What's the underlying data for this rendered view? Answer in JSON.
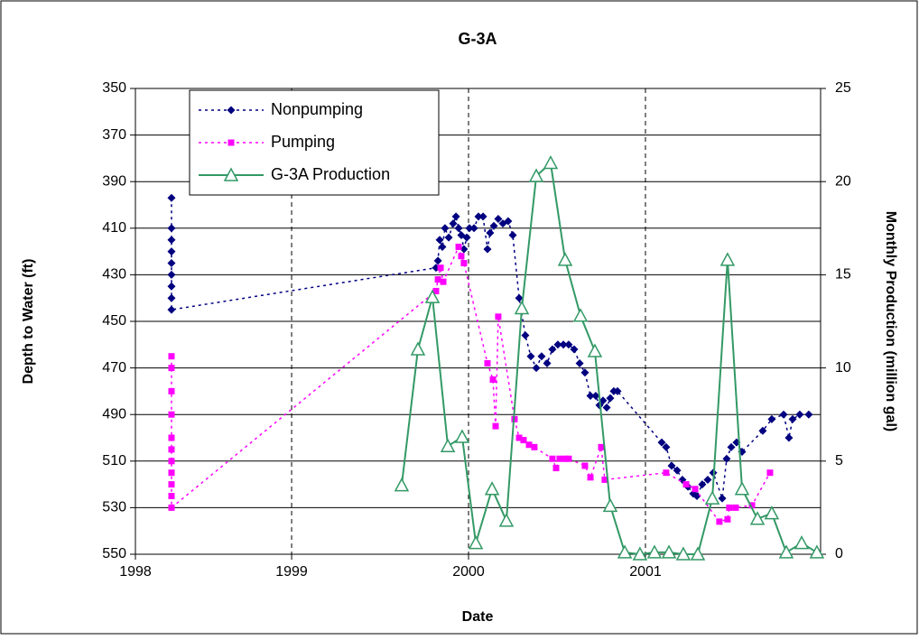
{
  "chart_data": {
    "type": "line",
    "title": "G-3A",
    "x_label": "Date",
    "y_label": "Depth to Water (ft)",
    "y2_label": "Monthly Production (million gal)",
    "xlim": [
      1998.117,
      2001.99
    ],
    "xticks": [
      {
        "value": 1998.117,
        "label": "1998"
      },
      1999,
      2000,
      2001
    ],
    "ylim": [
      550,
      350
    ],
    "yticks": [
      350,
      370,
      390,
      410,
      430,
      450,
      470,
      490,
      510,
      530,
      550
    ],
    "y2lim": [
      0,
      25
    ],
    "y2ticks": [
      0,
      5,
      10,
      15,
      20,
      25
    ],
    "grid": true,
    "legend": "top-left",
    "series": [
      {
        "name": "Nonpumping",
        "color": "#000080",
        "marker": "diamond",
        "line_style": "dotted",
        "x": [
          1998.321,
          1998.321,
          1998.321,
          1998.321,
          1998.321,
          1998.321,
          1998.321,
          1998.321,
          1998.321,
          1999.816,
          1999.827,
          1999.837,
          1999.852,
          1999.867,
          1999.888,
          1999.913,
          1999.929,
          1999.944,
          1999.959,
          1999.974,
          1999.99,
          2000.005,
          2000.031,
          2000.056,
          2000.082,
          2000.107,
          2000.122,
          2000.143,
          2000.168,
          2000.194,
          2000.224,
          2000.25,
          2000.286,
          2000.321,
          2000.352,
          2000.383,
          2000.413,
          2000.444,
          2000.474,
          2000.505,
          2000.536,
          2000.566,
          2000.597,
          2000.628,
          2000.658,
          2000.689,
          2000.719,
          2000.74,
          2000.76,
          2000.781,
          2000.801,
          2000.821,
          2000.842,
          2001.092,
          2001.117,
          2001.148,
          2001.179,
          2001.209,
          2001.24,
          2001.27,
          2001.291,
          2001.321,
          2001.352,
          2001.383,
          2001.434,
          2001.459,
          2001.485,
          2001.515,
          2001.546,
          2001.663,
          2001.714,
          2001.781,
          2001.811,
          2001.832,
          2001.872,
          2001.923
        ],
        "values": [
          397,
          410,
          415,
          420,
          425,
          430,
          435,
          440,
          445,
          427,
          424,
          415,
          418,
          410,
          414,
          408,
          405,
          410,
          413,
          419,
          414,
          410,
          410,
          405,
          405,
          419,
          412,
          409,
          406,
          408,
          407,
          413,
          440,
          456,
          465,
          470,
          465,
          468,
          462,
          460,
          460,
          460,
          462,
          468,
          472,
          482,
          482,
          486,
          484,
          487,
          483,
          480,
          480,
          502,
          504,
          512,
          514,
          518,
          521,
          524,
          525,
          520,
          518,
          515,
          526,
          509,
          504,
          502,
          506,
          497,
          492,
          490,
          500,
          492,
          490,
          490
        ]
      },
      {
        "name": "Pumping",
        "color": "#FF00FF",
        "marker": "square",
        "line_style": "dotted",
        "x": [
          1998.321,
          1998.321,
          1998.321,
          1998.321,
          1998.321,
          1998.321,
          1998.321,
          1998.321,
          1998.321,
          1998.321,
          1998.321,
          1999.816,
          1999.827,
          1999.842,
          1999.857,
          1999.944,
          1999.959,
          1999.974,
          2000.107,
          2000.138,
          2000.153,
          2000.168,
          2000.26,
          2000.286,
          2000.311,
          2000.342,
          2000.372,
          2000.474,
          2000.495,
          2000.515,
          2000.546,
          2000.566,
          2000.658,
          2000.689,
          2000.75,
          2000.77,
          2001.117,
          2001.23,
          2001.281,
          2001.418,
          2001.464,
          2001.474,
          2001.51,
          2001.602,
          2001.704
        ],
        "values": [
          465,
          470,
          480,
          490,
          500,
          505,
          510,
          515,
          520,
          525,
          530,
          437,
          432,
          427,
          433,
          418,
          422,
          425,
          468,
          475,
          495,
          448,
          492,
          500,
          501,
          503,
          504,
          509,
          513,
          509,
          509,
          509,
          512,
          517,
          504,
          518,
          515,
          520,
          522,
          536,
          535,
          530,
          530,
          529,
          515
        ]
      },
      {
        "name": "G-3A Production",
        "color": "#339966",
        "marker": "triangle",
        "line_style": "solid",
        "axis": "y2",
        "x": [
          1999.622,
          1999.714,
          1999.796,
          1999.883,
          1999.964,
          2000.041,
          2000.133,
          2000.214,
          2000.301,
          2000.383,
          2000.464,
          2000.546,
          2000.633,
          2000.714,
          2000.801,
          2000.883,
          2000.969,
          2001.051,
          2001.133,
          2001.214,
          2001.296,
          2001.378,
          2001.464,
          2001.546,
          2001.633,
          2001.714,
          2001.796,
          2001.883,
          2001.969
        ],
        "values": [
          3.7,
          11,
          13.8,
          5.8,
          6.3,
          0.6,
          3.5,
          1.8,
          13.2,
          20.3,
          21,
          15.8,
          12.8,
          10.9,
          2.6,
          0.1,
          0,
          0.1,
          0.1,
          0,
          0,
          3,
          15.8,
          3.5,
          1.9,
          2.2,
          0.1,
          0.6,
          0.1
        ]
      }
    ]
  }
}
